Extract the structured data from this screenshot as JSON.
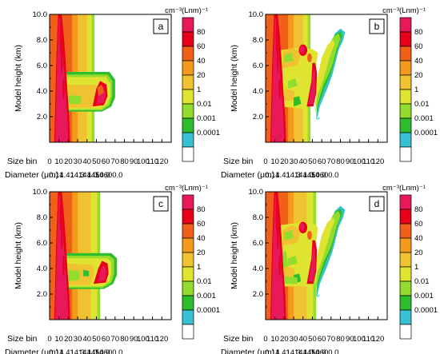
{
  "colorbar": {
    "unit": "cm⁻³(Lnm)⁻¹",
    "levels": [
      "80",
      "60",
      "40",
      "20",
      "1",
      "0.01",
      "0.001",
      "0.0001"
    ],
    "colors": [
      "#e8195a",
      "#e8001a",
      "#f06018",
      "#f59a1c",
      "#f0c232",
      "#dfe430",
      "#91dc2c",
      "#2ebe2c",
      "#37c2d4",
      "#ffffff"
    ]
  },
  "chart_data": [
    {
      "type": "heatmap",
      "panel": "a",
      "ylabel": "Model height (km)",
      "xlabel": "Size bin",
      "x2label": "Diameter (μm)",
      "xlim": [
        0,
        130
      ],
      "ylim": [
        0,
        10
      ],
      "xticks": [
        0,
        10,
        20,
        30,
        40,
        50,
        60,
        70,
        80,
        90,
        100,
        110,
        120
      ],
      "yticks": [
        "2.0",
        "4.0",
        "6.0",
        "8.0",
        "10.0"
      ],
      "diameter_ticks": [
        "0.14",
        "1.41",
        "14.3",
        "144.0",
        "1450.0",
        "14600.0"
      ]
    },
    {
      "type": "heatmap",
      "panel": "b",
      "ylabel": "Model height (km)",
      "xlabel": "Size bin",
      "x2label": "Diameter (μm)",
      "xlim": [
        0,
        130
      ],
      "ylim": [
        0,
        10
      ],
      "xticks": [
        0,
        10,
        20,
        30,
        40,
        50,
        60,
        70,
        80,
        90,
        100,
        110,
        120
      ],
      "yticks": [
        "2.0",
        "4.0",
        "6.0",
        "8.0",
        "10.0"
      ],
      "diameter_ticks": [
        "0.14",
        "1.41",
        "14.3",
        "144.0",
        "1450.0",
        "14600.0"
      ]
    },
    {
      "type": "heatmap",
      "panel": "c",
      "ylabel": "Model height (km)",
      "xlabel": "Size bin",
      "x2label": "Diameter (μm)",
      "xlim": [
        0,
        130
      ],
      "ylim": [
        0,
        10
      ],
      "xticks": [
        0,
        10,
        20,
        30,
        40,
        50,
        60,
        70,
        80,
        90,
        100,
        110,
        120
      ],
      "yticks": [
        "2.0",
        "4.0",
        "6.0",
        "8.0",
        "10.0"
      ],
      "diameter_ticks": [
        "0.14",
        "1.41",
        "14.3",
        "144.0",
        "1450.0",
        "14600.0"
      ]
    },
    {
      "type": "heatmap",
      "panel": "d",
      "ylabel": "Model height (km)",
      "xlabel": "Size bin",
      "x2label": "Diameter (μm)",
      "xlim": [
        0,
        130
      ],
      "ylim": [
        0,
        10
      ],
      "xticks": [
        0,
        10,
        20,
        30,
        40,
        50,
        60,
        70,
        80,
        90,
        100,
        110,
        120
      ],
      "yticks": [
        "2.0",
        "4.0",
        "6.0",
        "8.0",
        "10.0"
      ],
      "diameter_ticks": [
        "0.14",
        "1.41",
        "14.3",
        "144.0",
        "1450.0",
        "14600.0"
      ]
    }
  ]
}
